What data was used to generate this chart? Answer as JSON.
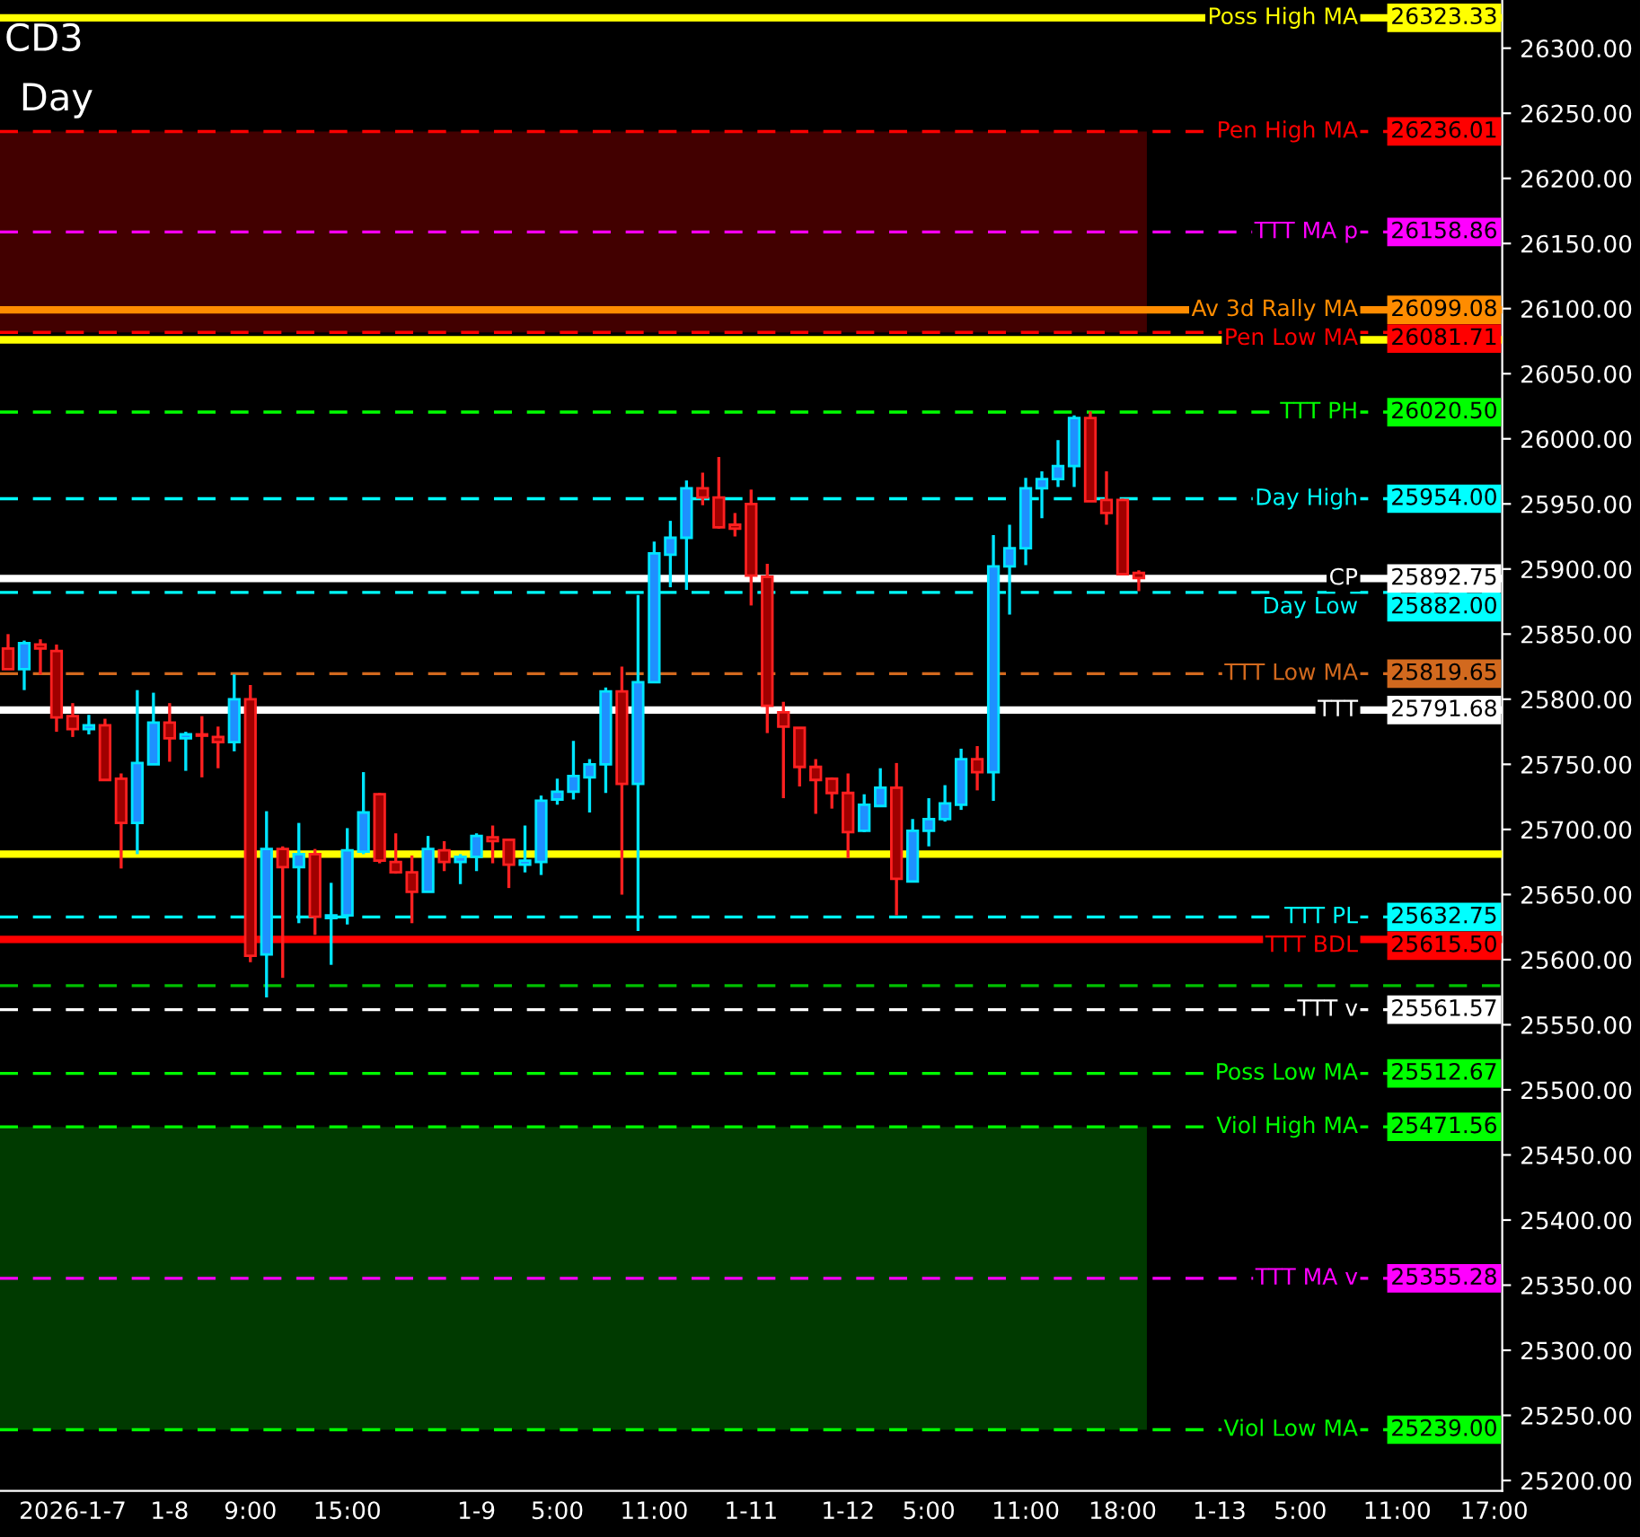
{
  "chart_data": {
    "type": "candlestick",
    "title": "CD3",
    "subtitle": "Day",
    "categories": [
      null,
      null,
      null,
      null,
      "2026-1-7",
      null,
      null,
      null,
      null,
      null,
      "1-8",
      null,
      null,
      null,
      null,
      "9:00",
      null,
      null,
      null,
      null,
      null,
      "15:00",
      null,
      null,
      null,
      null,
      null,
      null,
      null,
      "1-9",
      null,
      null,
      null,
      null,
      "5:00",
      null,
      null,
      null,
      null,
      null,
      "11:00",
      null,
      null,
      null,
      null,
      null,
      "1-11",
      null,
      null,
      null,
      null,
      null,
      "1-12",
      null,
      null,
      null,
      null,
      "5:00",
      null,
      null,
      null,
      null,
      null,
      "11:00",
      null,
      null,
      null,
      null,
      null,
      "18:00",
      null,
      null,
      null,
      null,
      null,
      "1-13",
      null,
      null,
      null,
      null,
      "5:00",
      null,
      null,
      null,
      null,
      null,
      "11:00",
      null,
      null,
      null,
      null,
      null,
      "17:00"
    ],
    "ohlc": [
      [
        25839,
        25850,
        25823,
        25823
      ],
      [
        25823,
        25845,
        25807,
        25843
      ],
      [
        25842,
        25846,
        25819,
        25839
      ],
      [
        25837,
        25842,
        25775,
        25786
      ],
      [
        25787,
        25797,
        25771,
        25777
      ],
      [
        25777,
        25788,
        25773,
        25780
      ],
      [
        25780,
        25785,
        25738,
        25738
      ],
      [
        25739,
        25743,
        25670,
        25705
      ],
      [
        25705,
        25807,
        25681,
        25751
      ],
      [
        25750,
        25805,
        25750,
        25782
      ],
      [
        25782,
        25797,
        25752,
        25770
      ],
      [
        25770,
        25775,
        25745,
        25773
      ],
      [
        25773,
        25787,
        25740,
        25772
      ],
      [
        25771,
        25779,
        25747,
        25767
      ],
      [
        25767,
        25819,
        25760,
        25800
      ],
      [
        25800,
        25811,
        25598,
        25603
      ],
      [
        25604,
        25714,
        25571,
        25685
      ],
      [
        25685,
        25687,
        25586,
        25671
      ],
      [
        25671,
        25705,
        25628,
        25681
      ],
      [
        25681,
        25685,
        25619,
        25633
      ],
      [
        25632,
        25659,
        25596,
        25634
      ],
      [
        25634,
        25701,
        25627,
        25684
      ],
      [
        25683,
        25744,
        25681,
        25713
      ],
      [
        25727,
        25728,
        25674,
        25676
      ],
      [
        25675,
        25697,
        25666,
        25667
      ],
      [
        25667,
        25680,
        25628,
        25652
      ],
      [
        25652,
        25695,
        25652,
        25685
      ],
      [
        25684,
        25691,
        25668,
        25675
      ],
      [
        25675,
        25681,
        25658,
        25679
      ],
      [
        25679,
        25697,
        25668,
        25695
      ],
      [
        25694,
        25703,
        25674,
        25691
      ],
      [
        25692,
        25692,
        25655,
        25673
      ],
      [
        25673,
        25703,
        25667,
        25676
      ],
      [
        25675,
        25726,
        25665,
        25722
      ],
      [
        25723,
        25739,
        25719,
        25729
      ],
      [
        25729,
        25768,
        25723,
        25741
      ],
      [
        25740,
        25754,
        25713,
        25750
      ],
      [
        25750,
        25809,
        25728,
        25806
      ],
      [
        25806,
        25825,
        25650,
        25735
      ],
      [
        25735,
        25880,
        25622,
        25813
      ],
      [
        25813,
        25921,
        25813,
        25912
      ],
      [
        25911,
        25937,
        25886,
        25924
      ],
      [
        25924,
        25968,
        25884,
        25962
      ],
      [
        25962,
        25974,
        25949,
        25955
      ],
      [
        25955,
        25986,
        25931,
        25932
      ],
      [
        25934,
        25943,
        25925,
        25931
      ],
      [
        25950,
        25961,
        25872,
        25895
      ],
      [
        25894,
        25904,
        25774,
        25795
      ],
      [
        25790,
        25798,
        25724,
        25779
      ],
      [
        25778,
        25778,
        25733,
        25748
      ],
      [
        25748,
        25754,
        25712,
        25738
      ],
      [
        25739,
        25740,
        25716,
        25728
      ],
      [
        25728,
        25743,
        25678,
        25698
      ],
      [
        25699,
        25727,
        25698,
        25719
      ],
      [
        25718,
        25747,
        25718,
        25732
      ],
      [
        25732,
        25751,
        25634,
        25662
      ],
      [
        25660,
        25708,
        25660,
        25699
      ],
      [
        25699,
        25724,
        25687,
        25708
      ],
      [
        25708,
        25734,
        25706,
        25720
      ],
      [
        25719,
        25762,
        25715,
        25754
      ],
      [
        25754,
        25764,
        25730,
        25744
      ],
      [
        25744,
        25926,
        25722,
        25902
      ],
      [
        25902,
        25934,
        25865,
        25916
      ],
      [
        25916,
        25970,
        25903,
        25962
      ],
      [
        25962,
        25975,
        25939,
        25969
      ],
      [
        25969,
        25999,
        25963,
        25979
      ],
      [
        25979,
        26018,
        25963,
        26016
      ],
      [
        26016,
        26021,
        25952,
        25952
      ],
      [
        25953,
        25975,
        25934,
        25943
      ],
      [
        25953,
        25954,
        25896,
        25896
      ],
      [
        25897,
        25899,
        25883,
        25893
      ],
      null,
      null,
      null,
      null,
      null,
      null,
      null,
      null,
      null,
      null,
      null,
      null,
      null,
      null,
      null,
      null,
      null,
      null,
      null,
      null,
      null,
      null
    ],
    "ylim": [
      25192,
      26337
    ],
    "yticks": [
      {
        "value": 25200,
        "label": "25200.00"
      },
      {
        "value": 25250,
        "label": "25250.00"
      },
      {
        "value": 25300,
        "label": "25300.00"
      },
      {
        "value": 25350,
        "label": "25350.00"
      },
      {
        "value": 25400,
        "label": "25400.00"
      },
      {
        "value": 25450,
        "label": "25450.00"
      },
      {
        "value": 25500,
        "label": "25500.00"
      },
      {
        "value": 25550,
        "label": "25550.00"
      },
      {
        "value": 25600,
        "label": "25600.00"
      },
      {
        "value": 25650,
        "label": "25650.00"
      },
      {
        "value": 25700,
        "label": "25700.00"
      },
      {
        "value": 25750,
        "label": "25750.00"
      },
      {
        "value": 25800,
        "label": "25800.00"
      },
      {
        "value": 25850,
        "label": "25850.00"
      },
      {
        "value": 25900,
        "label": "25900.00"
      },
      {
        "value": 25950,
        "label": "25950.00"
      },
      {
        "value": 26000,
        "label": "26000.00"
      },
      {
        "value": 26050,
        "label": "26050.00"
      },
      {
        "value": 26100,
        "label": "26100.00"
      },
      {
        "value": 26150,
        "label": "26150.00"
      },
      {
        "value": 26200,
        "label": "26200.00"
      },
      {
        "value": 26250,
        "label": "26250.00"
      },
      {
        "value": 26300,
        "label": "26300.00"
      }
    ],
    "bands": [
      {
        "axis": "y",
        "from": 26081.71,
        "to": 26236.01,
        "color": "#420000"
      },
      {
        "axis": "y",
        "from": 25239.0,
        "to": 25471.56,
        "color": "#003a00"
      }
    ],
    "ref_lines": [
      {
        "axis": "y",
        "value": 26323.33,
        "label": "Poss High MA",
        "color": "#ffff00",
        "line_style": "solid"
      },
      {
        "axis": "y",
        "value": 26236.01,
        "label": "Pen High MA",
        "color": "#ff0000",
        "line_style": "dashed"
      },
      {
        "axis": "y",
        "value": 26158.86,
        "label": "TTT MA p",
        "color": "#ff00ff",
        "line_style": "dashed"
      },
      {
        "axis": "y",
        "value": 26099.08,
        "label": "Av 3d Rally MA",
        "color": "#ff8c00",
        "line_style": "solid"
      },
      {
        "axis": "y",
        "value": 26081.71,
        "label": "Pen Low MA",
        "color": "#ff0000",
        "line_style": "dashed"
      },
      {
        "axis": "y",
        "value": 26076,
        "color": "#ffff00",
        "line_style": "solid"
      },
      {
        "axis": "y",
        "value": 26020.5,
        "label": "TTT PH",
        "color": "#00ff00",
        "line_style": "dashed"
      },
      {
        "axis": "y",
        "value": 25954.0,
        "label": "Day High",
        "color": "#00ffff",
        "line_style": "dashed"
      },
      {
        "axis": "y",
        "value": 25892.75,
        "label": "CP",
        "color": "#ffffff",
        "line_style": "solid"
      },
      {
        "axis": "y",
        "value": 25882.0,
        "label": "Day Low",
        "color": "#00ffff",
        "line_style": "dashed"
      },
      {
        "axis": "y",
        "value": 25819.65,
        "label": "TTT Low MA",
        "color": "#d2691e",
        "line_style": "dashed"
      },
      {
        "axis": "y",
        "value": 25791.68,
        "label": "TTT",
        "color": "#ffffff",
        "line_style": "solid"
      },
      {
        "axis": "y",
        "value": 25681,
        "color": "#ffff00",
        "line_style": "solid"
      },
      {
        "axis": "y",
        "value": 25632.75,
        "label": "TTT PL",
        "color": "#00ffff",
        "line_style": "dashed"
      },
      {
        "axis": "y",
        "value": 25615.5,
        "label": "TTT BDL",
        "color": "#ff0000",
        "line_style": "solid"
      },
      {
        "axis": "y",
        "value": 25580,
        "color": "#00c000",
        "line_style": "dashed"
      },
      {
        "axis": "y",
        "value": 25561.57,
        "label": "TTT v",
        "color": "#ffffff",
        "line_style": "dashed"
      },
      {
        "axis": "y",
        "value": 25512.67,
        "label": "Poss Low MA",
        "color": "#00ff00",
        "line_style": "dashed"
      },
      {
        "axis": "y",
        "value": 25471.56,
        "label": "Viol High MA",
        "color": "#00ff00",
        "line_style": "dashed"
      },
      {
        "axis": "y",
        "value": 25355.28,
        "label": "TTT MA v",
        "color": "#ff00ff",
        "line_style": "dashed"
      },
      {
        "axis": "y",
        "value": 25239.0,
        "label": "Viol Low MA",
        "color": "#00ff00",
        "line_style": "dashed"
      }
    ],
    "annotations": [
      {
        "text": "26323.33",
        "y": 26323.33
      },
      {
        "text": "26236.01",
        "y": 26236.01
      },
      {
        "text": "26158.86",
        "y": 26158.86
      },
      {
        "text": "26099.08",
        "y": 26099.08
      },
      {
        "text": "26081.71",
        "y": 26081.71
      },
      {
        "text": "26020.50",
        "y": 26020.5
      },
      {
        "text": "25954.00",
        "y": 25954.0
      },
      {
        "text": "25892.75",
        "y": 25892.75
      },
      {
        "text": "25882.00",
        "y": 25882.0
      },
      {
        "text": "25819.65",
        "y": 25819.65
      },
      {
        "text": "25791.68",
        "y": 25791.68
      },
      {
        "text": "25632.75",
        "y": 25632.75
      },
      {
        "text": "25615.50",
        "y": 25615.5
      },
      {
        "text": "25561.57",
        "y": 25561.57
      },
      {
        "text": "25512.67",
        "y": 25512.67
      },
      {
        "text": "25471.56",
        "y": 25471.56
      },
      {
        "text": "25355.28",
        "y": 25355.28
      },
      {
        "text": "25239.00",
        "y": 25239.0
      }
    ],
    "grid": false,
    "legend": false
  }
}
